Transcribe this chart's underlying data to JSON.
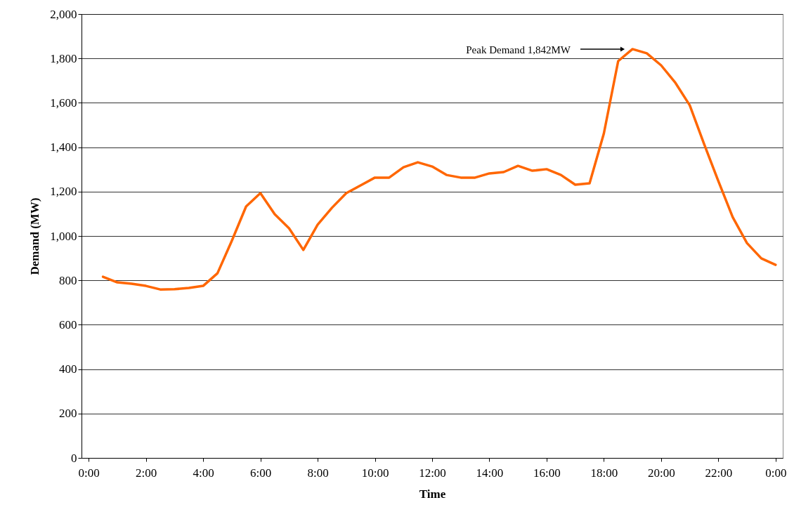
{
  "chart_data": {
    "type": "line",
    "xlabel": "Time",
    "ylabel": "Demand (MW)",
    "x": [
      0.5,
      1,
      1.5,
      2,
      2.5,
      3,
      3.5,
      4,
      4.5,
      5,
      5.5,
      6,
      6.5,
      7,
      7.5,
      8,
      8.5,
      9,
      9.5,
      10,
      10.5,
      11,
      11.5,
      12,
      12.5,
      13,
      13.5,
      14,
      14.5,
      15,
      15.5,
      16,
      16.5,
      17,
      17.5,
      18,
      18.5,
      19,
      19.5,
      20,
      20.5,
      21,
      21.5,
      22,
      22.5,
      23,
      23.5,
      24
    ],
    "series": [
      {
        "color": "#ff6600",
        "values": [
          816,
          791,
          785,
          775,
          759,
          760,
          766,
          775,
          832,
          978,
          1133,
          1193,
          1098,
          1035,
          937,
          1051,
          1127,
          1193,
          1228,
          1263,
          1263,
          1310,
          1332,
          1313,
          1275,
          1263,
          1263,
          1282,
          1288,
          1316,
          1294,
          1301,
          1275,
          1231,
          1237,
          1462,
          1788,
          1842,
          1823,
          1769,
          1690,
          1589,
          1415,
          1247,
          1085,
          968,
          899,
          870
        ]
      }
    ],
    "xlim": [
      -0.25,
      24.25
    ],
    "xticks": [
      {
        "value": 0,
        "label": "0:00"
      },
      {
        "value": 2,
        "label": "2:00"
      },
      {
        "value": 4,
        "label": "4:00"
      },
      {
        "value": 6,
        "label": "6:00"
      },
      {
        "value": 8,
        "label": "8:00"
      },
      {
        "value": 10,
        "label": "10:00"
      },
      {
        "value": 12,
        "label": "12:00"
      },
      {
        "value": 14,
        "label": "14:00"
      },
      {
        "value": 16,
        "label": "16:00"
      },
      {
        "value": 18,
        "label": "18:00"
      },
      {
        "value": 20,
        "label": "20:00"
      },
      {
        "value": 22,
        "label": "22:00"
      },
      {
        "value": 24,
        "label": "0:00"
      }
    ],
    "ylim": [
      0,
      2000
    ],
    "yticks": [
      0,
      200,
      400,
      600,
      800,
      {
        "value": 1000,
        "label": "1,000"
      },
      {
        "value": 1200,
        "label": "1,200"
      },
      {
        "value": 1400,
        "label": "1,400"
      },
      {
        "value": 1600,
        "label": "1,600"
      },
      {
        "value": 1800,
        "label": "1,800"
      },
      {
        "value": 2000,
        "label": "2,000"
      }
    ],
    "grid": "y",
    "line_style": "solid",
    "annotations": [
      "Peak Demand 1,842MW"
    ]
  }
}
